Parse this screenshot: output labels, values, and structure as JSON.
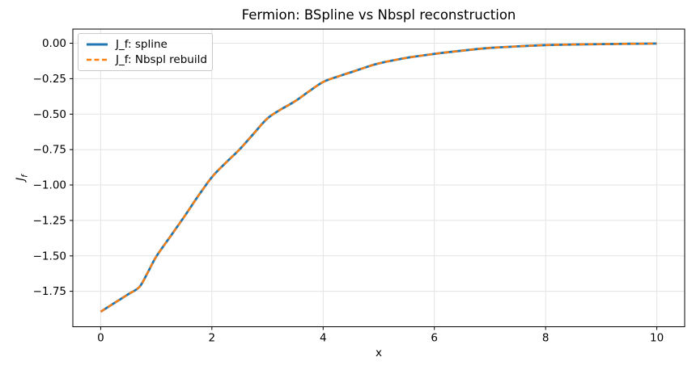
{
  "chart_data": {
    "type": "line",
    "title": "Fermion: BSpline vs Nbspl reconstruction",
    "xlabel": "x",
    "ylabel": "J_f",
    "xlim": [
      -0.5,
      10.5
    ],
    "ylim": [
      -2.0,
      0.1
    ],
    "x_ticks": [
      0,
      2,
      4,
      6,
      8,
      10
    ],
    "x_tick_labels": [
      "0",
      "2",
      "4",
      "6",
      "8",
      "10"
    ],
    "y_ticks": [
      0.0,
      -0.25,
      -0.5,
      -0.75,
      -1.0,
      -1.25,
      -1.5,
      -1.75
    ],
    "y_tick_labels": [
      "0.00",
      "−0.25",
      "−0.50",
      "−0.75",
      "−1.00",
      "−1.25",
      "−1.50",
      "−1.75"
    ],
    "grid": true,
    "legend_position": "upper left",
    "x": [
      0,
      0.25,
      0.5,
      0.7,
      0.85,
      1.0,
      1.25,
      1.5,
      1.75,
      2.0,
      2.25,
      2.5,
      2.75,
      3.0,
      3.25,
      3.5,
      3.75,
      4.0,
      4.25,
      4.5,
      4.75,
      5.0,
      5.5,
      6.0,
      6.5,
      7.0,
      7.5,
      8.0,
      8.5,
      9.0,
      9.5,
      10.0
    ],
    "series": [
      {
        "name": "J_f: spline",
        "color": "#1f77b4",
        "line_style": "solid",
        "values": [
          -1.894,
          -1.832,
          -1.77,
          -1.718,
          -1.615,
          -1.505,
          -1.365,
          -1.225,
          -1.08,
          -0.945,
          -0.843,
          -0.748,
          -0.638,
          -0.53,
          -0.465,
          -0.408,
          -0.338,
          -0.273,
          -0.237,
          -0.205,
          -0.172,
          -0.142,
          -0.103,
          -0.075,
          -0.052,
          -0.033,
          -0.022,
          -0.013,
          -0.009,
          -0.006,
          -0.004,
          -0.002
        ]
      },
      {
        "name": "J_f: Nbspl rebuild",
        "color": "#ff7f0e",
        "line_style": "dashed",
        "values": [
          -1.894,
          -1.832,
          -1.77,
          -1.718,
          -1.615,
          -1.505,
          -1.365,
          -1.225,
          -1.08,
          -0.945,
          -0.843,
          -0.748,
          -0.638,
          -0.53,
          -0.465,
          -0.408,
          -0.338,
          -0.273,
          -0.237,
          -0.205,
          -0.172,
          -0.142,
          -0.103,
          -0.075,
          -0.052,
          -0.033,
          -0.022,
          -0.013,
          -0.009,
          -0.006,
          -0.004,
          -0.002
        ]
      }
    ]
  },
  "colors": {
    "background": "#ffffff",
    "grid": "#e3e3e3",
    "spine": "#000000",
    "text": "#000000",
    "legend_border": "#c9c9c9"
  }
}
